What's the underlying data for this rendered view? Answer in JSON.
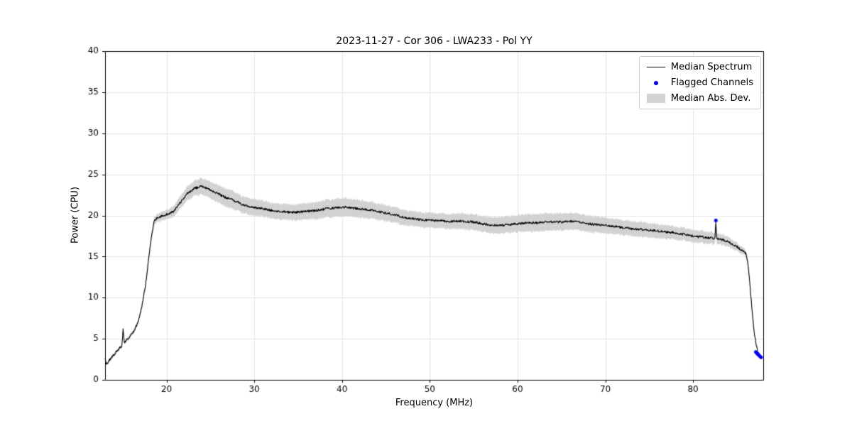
{
  "chart_data": {
    "type": "line",
    "title": "2023-11-27 - Cor 306 - LWA233 - Pol YY",
    "xlabel": "Frequency (MHz)",
    "ylabel": "Power (CPU)",
    "xlim": [
      13,
      88
    ],
    "ylim": [
      0,
      40
    ],
    "xticks": [
      20,
      30,
      40,
      50,
      60,
      70,
      80
    ],
    "yticks": [
      0,
      5,
      10,
      15,
      20,
      25,
      30,
      35,
      40
    ],
    "grid": true,
    "grid_color": "#e4e4e4",
    "band_color": "#d2d2d2",
    "legend": {
      "position": "upper right",
      "entries": [
        {
          "label": "Median Spectrum",
          "type": "line",
          "color": "#000000"
        },
        {
          "label": "Flagged Channels",
          "type": "marker",
          "color": "#0000ff"
        },
        {
          "label": "Median Abs. Dev.",
          "type": "patch",
          "color": "#d2d2d2"
        }
      ]
    },
    "x_range": [
      13.0,
      87.8
    ],
    "sample_step_mhz": 0.05,
    "noise": {
      "seed": 42,
      "amplitude": 0.14,
      "band_amplitude": 0.08
    },
    "series": [
      {
        "name": "Median Spectrum",
        "color": "#000000",
        "keypoints": [
          [
            13.0,
            2.6
          ],
          [
            13.15,
            1.9
          ],
          [
            13.4,
            2.3
          ],
          [
            13.8,
            2.8
          ],
          [
            14.2,
            3.3
          ],
          [
            14.6,
            3.8
          ],
          [
            14.9,
            4.1
          ],
          [
            15.05,
            6.1
          ],
          [
            15.2,
            4.6
          ],
          [
            15.6,
            5.0
          ],
          [
            16.0,
            5.5
          ],
          [
            16.4,
            6.1
          ],
          [
            16.8,
            7.2
          ],
          [
            17.2,
            9.0
          ],
          [
            17.6,
            11.5
          ],
          [
            18.0,
            15.0
          ],
          [
            18.3,
            17.5
          ],
          [
            18.6,
            19.3
          ],
          [
            18.9,
            19.7
          ],
          [
            19.2,
            19.8
          ],
          [
            19.6,
            20.0
          ],
          [
            20.0,
            20.1
          ],
          [
            20.4,
            20.3
          ],
          [
            20.8,
            20.5
          ],
          [
            21.2,
            21.0
          ],
          [
            21.6,
            21.6
          ],
          [
            22.0,
            22.2
          ],
          [
            22.4,
            22.7
          ],
          [
            22.8,
            23.0
          ],
          [
            23.2,
            23.3
          ],
          [
            23.6,
            23.4
          ],
          [
            24.0,
            23.6
          ],
          [
            24.4,
            23.4
          ],
          [
            24.8,
            23.2
          ],
          [
            25.2,
            23.0
          ],
          [
            25.6,
            22.8
          ],
          [
            26.0,
            22.6
          ],
          [
            26.5,
            22.3
          ],
          [
            27.0,
            22.1
          ],
          [
            27.5,
            21.9
          ],
          [
            28.0,
            21.7
          ],
          [
            28.5,
            21.4
          ],
          [
            29.0,
            21.2
          ],
          [
            29.5,
            21.1
          ],
          [
            30.0,
            21.0
          ],
          [
            30.5,
            20.9
          ],
          [
            31.0,
            20.8
          ],
          [
            31.5,
            20.7
          ],
          [
            32.0,
            20.6
          ],
          [
            33.0,
            20.5
          ],
          [
            34.0,
            20.4
          ],
          [
            35.0,
            20.4
          ],
          [
            36.0,
            20.5
          ],
          [
            37.0,
            20.6
          ],
          [
            38.0,
            20.8
          ],
          [
            39.0,
            20.9
          ],
          [
            40.0,
            21.0
          ],
          [
            40.5,
            21.0
          ],
          [
            41.0,
            20.9
          ],
          [
            42.0,
            20.8
          ],
          [
            43.0,
            20.7
          ],
          [
            44.0,
            20.5
          ],
          [
            45.0,
            20.3
          ],
          [
            46.0,
            20.1
          ],
          [
            47.0,
            19.8
          ],
          [
            48.0,
            19.6
          ],
          [
            49.0,
            19.5
          ],
          [
            50.0,
            19.4
          ],
          [
            51.0,
            19.4
          ],
          [
            52.0,
            19.3
          ],
          [
            53.0,
            19.3
          ],
          [
            54.0,
            19.3
          ],
          [
            55.0,
            19.2
          ],
          [
            56.0,
            19.0
          ],
          [
            57.0,
            18.8
          ],
          [
            58.0,
            18.8
          ],
          [
            59.0,
            18.9
          ],
          [
            60.0,
            19.0
          ],
          [
            61.0,
            19.1
          ],
          [
            62.0,
            19.1
          ],
          [
            63.0,
            19.2
          ],
          [
            64.0,
            19.2
          ],
          [
            65.0,
            19.2
          ],
          [
            66.0,
            19.3
          ],
          [
            67.0,
            19.2
          ],
          [
            68.0,
            19.0
          ],
          [
            69.0,
            18.9
          ],
          [
            70.0,
            18.8
          ],
          [
            71.0,
            18.7
          ],
          [
            72.0,
            18.5
          ],
          [
            73.0,
            18.4
          ],
          [
            74.0,
            18.3
          ],
          [
            75.0,
            18.2
          ],
          [
            76.0,
            18.1
          ],
          [
            77.0,
            18.0
          ],
          [
            78.0,
            17.9
          ],
          [
            79.0,
            17.7
          ],
          [
            80.0,
            17.5
          ],
          [
            80.5,
            17.4
          ],
          [
            81.0,
            17.4
          ],
          [
            81.5,
            17.3
          ],
          [
            82.0,
            17.3
          ],
          [
            82.5,
            17.2
          ],
          [
            82.6,
            19.2
          ],
          [
            82.7,
            17.2
          ],
          [
            83.0,
            17.1
          ],
          [
            83.5,
            17.0
          ],
          [
            84.0,
            16.8
          ],
          [
            84.5,
            16.5
          ],
          [
            85.0,
            16.2
          ],
          [
            85.4,
            15.9
          ],
          [
            85.7,
            15.7
          ],
          [
            86.0,
            15.4
          ],
          [
            86.2,
            14.5
          ],
          [
            86.4,
            12.5
          ],
          [
            86.6,
            10.0
          ],
          [
            86.8,
            7.5
          ],
          [
            87.0,
            5.5
          ],
          [
            87.2,
            4.2
          ],
          [
            87.4,
            3.4
          ],
          [
            87.6,
            3.0
          ],
          [
            87.8,
            2.7
          ]
        ]
      }
    ],
    "mad_halfwidth_keypoints": [
      [
        13,
        0.15
      ],
      [
        15,
        0.2
      ],
      [
        17,
        0.25
      ],
      [
        18,
        0.35
      ],
      [
        19,
        0.5
      ],
      [
        20,
        0.55
      ],
      [
        21,
        0.7
      ],
      [
        22,
        0.8
      ],
      [
        23,
        0.9
      ],
      [
        24,
        1.0
      ],
      [
        25,
        1.0
      ],
      [
        26,
        1.05
      ],
      [
        27,
        1.1
      ],
      [
        28,
        1.05
      ],
      [
        29,
        1.0
      ],
      [
        30,
        1.0
      ],
      [
        32,
        0.95
      ],
      [
        34,
        0.95
      ],
      [
        36,
        1.0
      ],
      [
        38,
        1.05
      ],
      [
        40,
        1.1
      ],
      [
        42,
        1.05
      ],
      [
        44,
        1.0
      ],
      [
        46,
        0.95
      ],
      [
        48,
        0.9
      ],
      [
        50,
        0.9
      ],
      [
        52,
        0.9
      ],
      [
        54,
        0.95
      ],
      [
        56,
        0.95
      ],
      [
        58,
        1.0
      ],
      [
        60,
        1.0
      ],
      [
        62,
        1.05
      ],
      [
        64,
        1.05
      ],
      [
        66,
        1.0
      ],
      [
        68,
        1.0
      ],
      [
        70,
        0.95
      ],
      [
        72,
        0.9
      ],
      [
        74,
        0.9
      ],
      [
        76,
        0.85
      ],
      [
        78,
        0.8
      ],
      [
        80,
        0.75
      ],
      [
        82,
        0.7
      ],
      [
        84,
        0.6
      ],
      [
        85,
        0.5
      ],
      [
        86,
        0.35
      ],
      [
        86.5,
        0.25
      ],
      [
        87,
        0.15
      ],
      [
        87.8,
        0.1
      ]
    ],
    "flagged_channels": {
      "color": "#0000ff",
      "points": [
        [
          82.6,
          19.4
        ],
        [
          87.15,
          3.4
        ],
        [
          87.3,
          3.2
        ],
        [
          87.45,
          3.05
        ],
        [
          87.6,
          2.9
        ],
        [
          87.75,
          2.75
        ]
      ]
    }
  }
}
